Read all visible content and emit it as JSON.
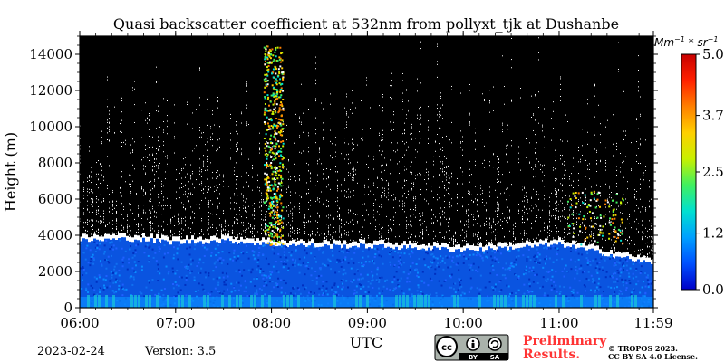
{
  "chart_data": {
    "type": "heatmap",
    "title": "Quasi backscatter coefficient at 532nm from pollyxt_tjk at Dushanbe",
    "xlabel": "UTC",
    "ylabel": "Height (m)",
    "xlim": [
      "06:00",
      "11:59"
    ],
    "ylim": [
      0,
      15000
    ],
    "x_ticks": [
      "06:00",
      "07:00",
      "08:00",
      "09:00",
      "10:00",
      "11:00",
      "11:59"
    ],
    "y_ticks": [
      0,
      2000,
      4000,
      6000,
      8000,
      10000,
      12000,
      14000
    ],
    "colorbar": {
      "units_text": "Mm",
      "units_sup1": "−1",
      "units_mid": " * sr",
      "units_sup2": "−1",
      "range": [
        0.0,
        5.0
      ],
      "ticks": [
        "0.0",
        "1.2",
        "2.5",
        "3.7",
        "5.0"
      ],
      "colormap": "jet",
      "colors": [
        "#0000c8",
        "#0050ff",
        "#00a0ff",
        "#00e0d0",
        "#40f060",
        "#c8f000",
        "#ffd000",
        "#ff8000",
        "#ff2000",
        "#c80000"
      ]
    },
    "background_color": "#000000",
    "aerosol_layer_top_m": [
      3700,
      3800,
      3600,
      3700,
      3500,
      3400,
      3400,
      3300,
      3200,
      3300,
      3500,
      2400
    ],
    "aerosol_layer_times": [
      "06:00",
      "06:30",
      "07:00",
      "07:30",
      "08:00",
      "08:30",
      "09:00",
      "09:30",
      "10:00",
      "10:30",
      "11:00",
      "11:59"
    ]
  },
  "footer": {
    "date": "2023-02-24",
    "version": "Version: 3.5",
    "preliminary_line1": "Preliminary",
    "preliminary_line2": "Results.",
    "copyright_line1": "© TROPOS 2023.",
    "copyright_line2": "CC BY SA 4.0 License.",
    "license_badge": "cc-by-sa-badge-icon",
    "license_by": "BY",
    "license_sa": "SA"
  }
}
